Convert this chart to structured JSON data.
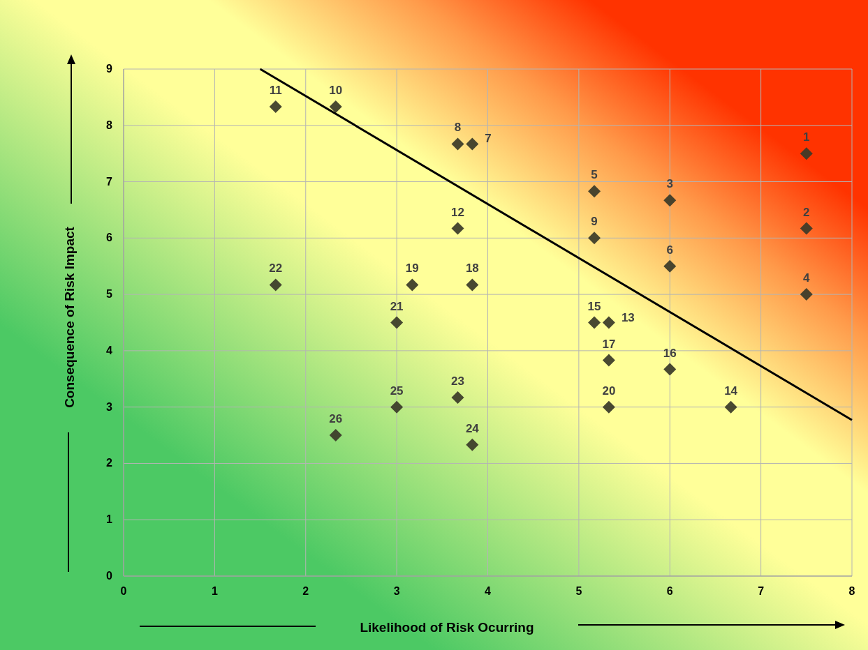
{
  "chart_data": {
    "type": "scatter",
    "xlabel": "Likelihood of Risk Ocurring",
    "ylabel": "Consequence of Risk Impact",
    "xlim": [
      0,
      8
    ],
    "xticks": [
      0,
      1,
      2,
      3,
      4,
      5,
      6,
      7,
      8
    ],
    "ylim": [
      0,
      9
    ],
    "yticks": [
      0,
      1,
      2,
      3,
      4,
      5,
      6,
      7,
      8,
      9
    ],
    "grid": true,
    "series": [
      {
        "color": "#3a3a28",
        "marker": "diamond",
        "x": [
          7.5,
          7.5,
          6,
          7.5,
          5.17,
          6,
          3.83,
          3.67,
          5.17,
          2.33,
          1.67,
          3.67,
          5.33,
          6.67,
          5.17,
          6,
          5.33,
          3.83,
          3.17,
          5.33,
          3,
          1.67,
          3.67,
          3.83,
          3,
          2.33
        ],
        "values": [
          7.5,
          6.17,
          6.67,
          5,
          6.83,
          5.5,
          7.67,
          7.67,
          6,
          8.33,
          8.33,
          6.17,
          4.5,
          3,
          4.5,
          3.67,
          3.83,
          5.17,
          5.17,
          3,
          4.5,
          5.17,
          3.17,
          2.33,
          3,
          2.5
        ]
      },
      {
        "type": "line",
        "color": "#000000",
        "marker": "none",
        "line_style": "solid",
        "x": [
          1.5,
          8
        ],
        "values": [
          9,
          2.77
        ]
      }
    ],
    "annotations": [
      {
        "text": "1",
        "x": 7.5,
        "y": 7.5
      },
      {
        "text": "2",
        "x": 7.5,
        "y": 6.17
      },
      {
        "text": "3",
        "x": 6,
        "y": 6.67
      },
      {
        "text": "4",
        "x": 7.5,
        "y": 5
      },
      {
        "text": "5",
        "x": 5.17,
        "y": 6.83
      },
      {
        "text": "6",
        "x": 6,
        "y": 5.5
      },
      {
        "text": "7",
        "x": 3.83,
        "y": 7.67
      },
      {
        "text": "8",
        "x": 3.67,
        "y": 7.67
      },
      {
        "text": "9",
        "x": 5.17,
        "y": 6
      },
      {
        "text": "10",
        "x": 2.33,
        "y": 8.33
      },
      {
        "text": "11",
        "x": 1.67,
        "y": 8.33
      },
      {
        "text": "12",
        "x": 3.67,
        "y": 6.17
      },
      {
        "text": "13",
        "x": 5.33,
        "y": 4.5
      },
      {
        "text": "14",
        "x": 6.67,
        "y": 3
      },
      {
        "text": "15",
        "x": 5.17,
        "y": 4.5
      },
      {
        "text": "16",
        "x": 6,
        "y": 3.67
      },
      {
        "text": "17",
        "x": 5.33,
        "y": 3.83
      },
      {
        "text": "18",
        "x": 3.83,
        "y": 5.17
      },
      {
        "text": "19",
        "x": 3.17,
        "y": 5.17
      },
      {
        "text": "20",
        "x": 5.33,
        "y": 3
      },
      {
        "text": "21",
        "x": 3,
        "y": 4.5
      },
      {
        "text": "22",
        "x": 1.67,
        "y": 5.17
      },
      {
        "text": "23",
        "x": 3.67,
        "y": 3.17
      },
      {
        "text": "24",
        "x": 3.83,
        "y": 2.33
      },
      {
        "text": "25",
        "x": 3,
        "y": 3
      },
      {
        "text": "26",
        "x": 2.33,
        "y": 2.5
      }
    ]
  }
}
